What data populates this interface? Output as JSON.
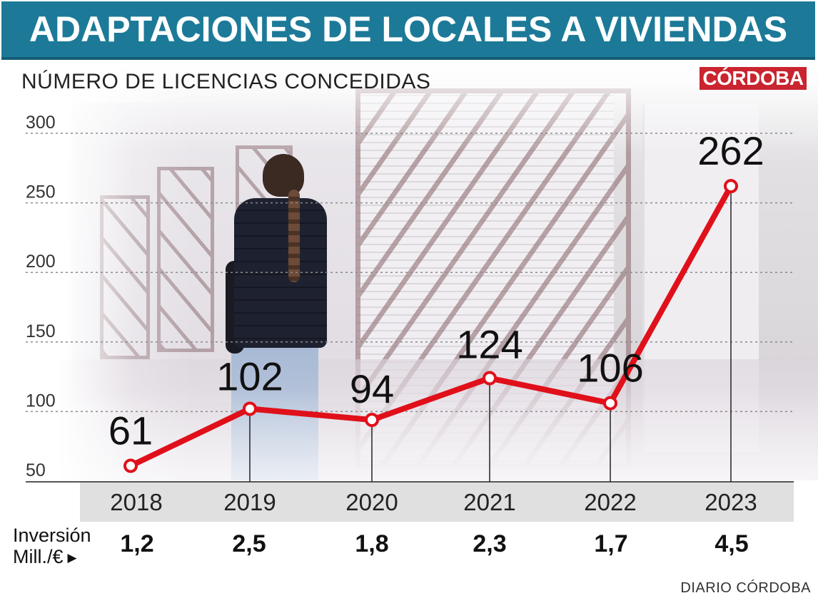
{
  "title": "ADAPTACIONES DE LOCALES A VIVIENDAS",
  "brand": "CÓRDOBA",
  "source": "DIARIO CÓRDOBA",
  "investment": {
    "label_line1": "Inversión",
    "label_line2": "Mill./€",
    "arrow": "▶",
    "values": [
      "1,2",
      "2,5",
      "1,8",
      "2,3",
      "1,7",
      "4,5"
    ]
  },
  "chart_data": {
    "type": "line",
    "title": "ADAPTACIONES DE LOCALES A VIVIENDAS",
    "ylabel": "NÚMERO DE LICENCIAS CONCEDIDAS",
    "xlabel": "",
    "categories": [
      "2018",
      "2019",
      "2020",
      "2021",
      "2022",
      "2023"
    ],
    "values": [
      61,
      102,
      94,
      124,
      106,
      262
    ],
    "data_labels": [
      "61",
      "102",
      "94",
      "124",
      "106",
      "262"
    ],
    "yticks": [
      50,
      100,
      150,
      200,
      250,
      300
    ],
    "ytick_labels": [
      "50",
      "100",
      "150",
      "200",
      "250",
      "300"
    ],
    "ylim": [
      50,
      300
    ],
    "grid": true,
    "line_color": "#e0101a",
    "marker_fill": "#ffffff"
  }
}
